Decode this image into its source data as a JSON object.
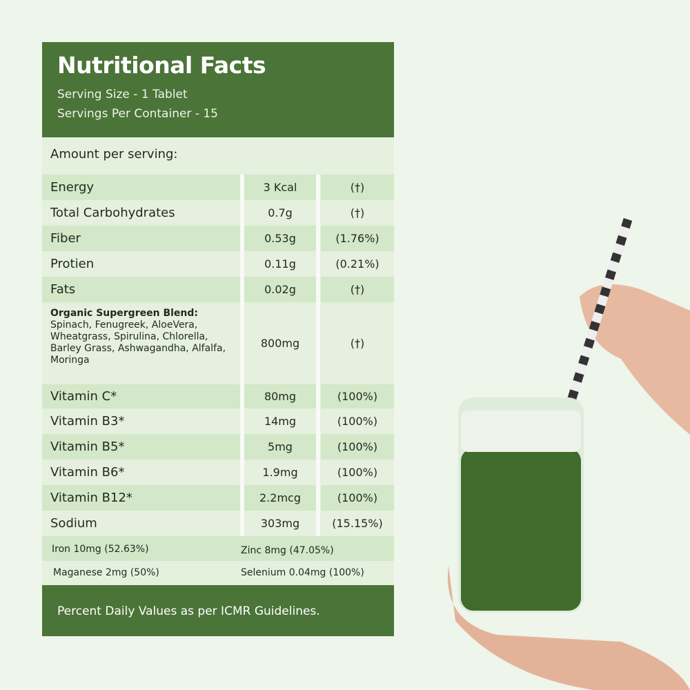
{
  "header": {
    "title": "Nutritional Facts",
    "serving_size": "Serving Size - 1 Tablet",
    "servings_per_container": "Servings Per Container - 15"
  },
  "amount_label": "Amount per serving:",
  "rows": [
    {
      "name": "Energy",
      "amount": "3 Kcal",
      "dv": "(†)"
    },
    {
      "name": "Total Carbohydrates",
      "amount": "0.7g",
      "dv": "(†)"
    },
    {
      "name": "Fiber",
      "amount": "0.53g",
      "dv": "(1.76%)"
    },
    {
      "name": "Protien",
      "amount": "0.11g",
      "dv": "(0.21%)"
    },
    {
      "name": "Fats",
      "amount": "0.02g",
      "dv": "(†)"
    },
    {
      "name": "Organic Supergreen Blend:",
      "ingredients": "Spinach, Fenugreek, AloeVera, Wheatgrass, Spirulina, Chlorella, Barley Grass, Ashwagandha, Alfalfa, Moringa",
      "amount": "800mg",
      "dv": "(†)"
    },
    {
      "name": "Vitamin C*",
      "amount": "80mg",
      "dv": "(100%)"
    },
    {
      "name": "Vitamin B3*",
      "amount": "14mg",
      "dv": "(100%)"
    },
    {
      "name": "Vitamin B5*",
      "amount": "5mg",
      "dv": "(100%)"
    },
    {
      "name": "Vitamin B6*",
      "amount": "1.9mg",
      "dv": "(100%)"
    },
    {
      "name": "Vitamin B12*",
      "amount": "2.2mcg",
      "dv": "(100%)"
    },
    {
      "name": "Sodium",
      "amount": "303mg",
      "dv": "(15.15%)"
    }
  ],
  "minerals": [
    "Iron 10mg (52.63%)",
    "Zinc 8mg (47.05%)",
    "Maganese 2mg (50%)",
    "Selenium 0.04mg (100%)"
  ],
  "footer": "Percent Daily Values as per ICMR Guidelines.",
  "colors": {
    "header_green": "#4b7438",
    "row_dark": "#d3e7c9",
    "row_light": "#e5f0de",
    "drink": "#3f6b2c"
  }
}
